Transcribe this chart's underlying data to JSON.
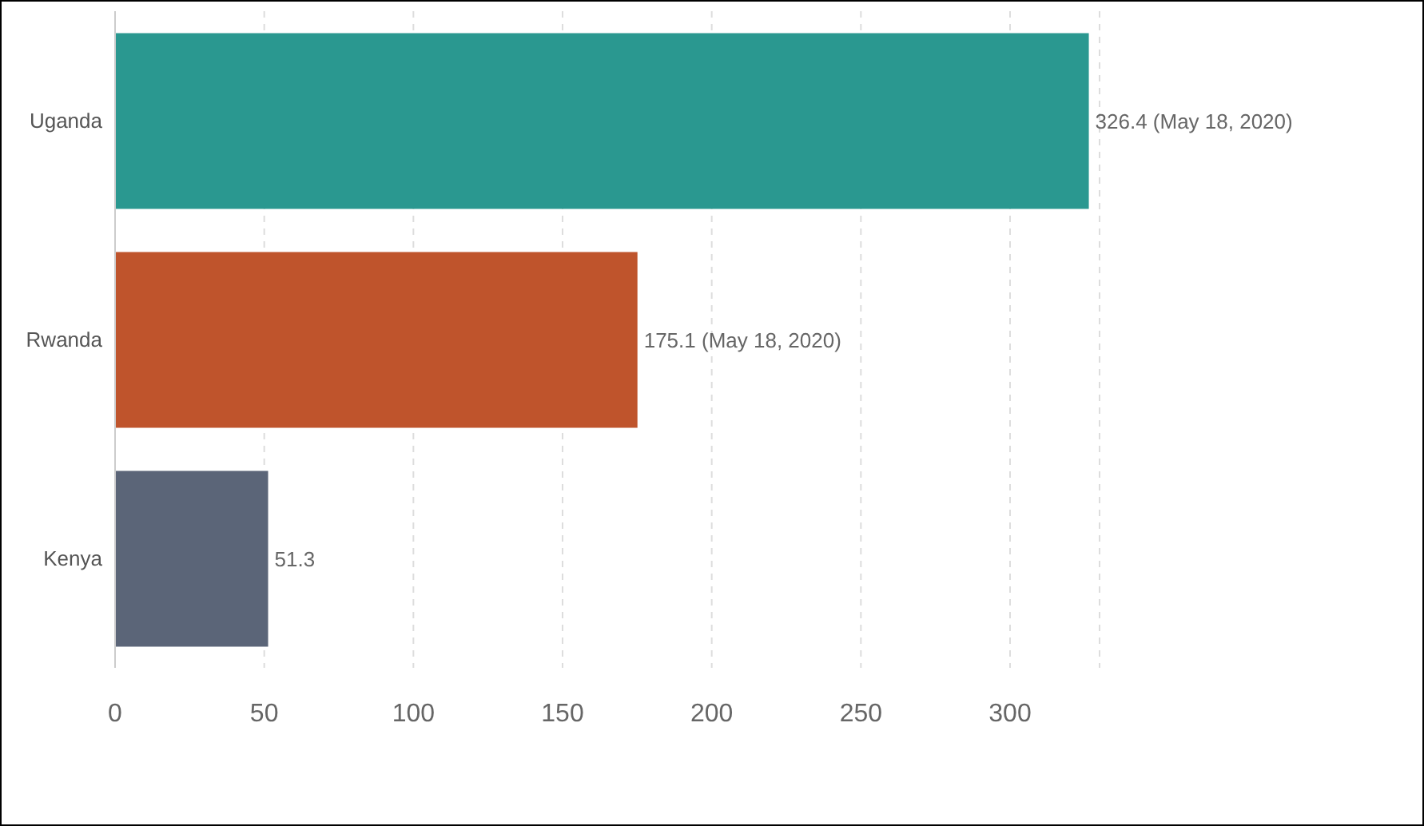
{
  "chart_data": {
    "type": "bar",
    "orientation": "horizontal",
    "categories": [
      "Uganda",
      "Rwanda",
      "Kenya"
    ],
    "values": [
      326.4,
      175.1,
      51.3
    ],
    "colors": [
      "#2a9890",
      "#bf542c",
      "#5b6578"
    ],
    "value_labels": [
      "326.4 (May 18, 2020)",
      "175.1 (May 18, 2020)",
      "51.3"
    ],
    "xlim": [
      0,
      330
    ],
    "xticks": [
      0,
      50,
      100,
      150,
      200,
      250,
      300
    ],
    "grid": "x"
  }
}
